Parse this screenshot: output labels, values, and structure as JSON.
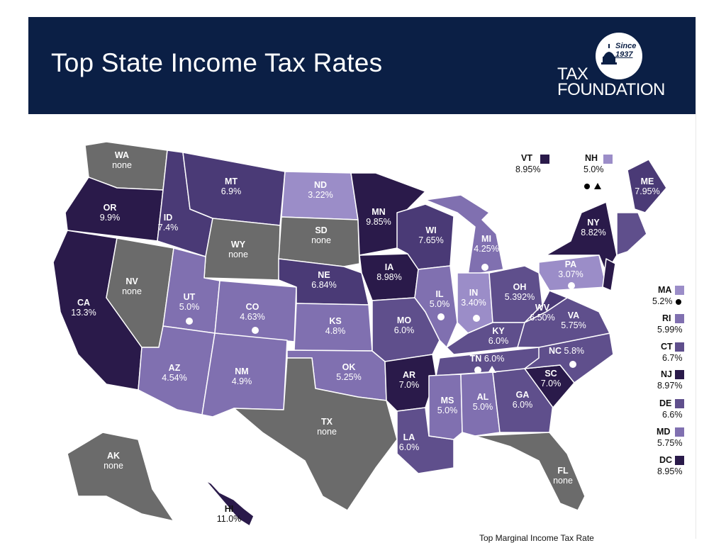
{
  "header": {
    "title": "Top State Income Tax Rates",
    "logo_since": "Since",
    "logo_year": "1937",
    "logo_line1": "TAX",
    "logo_line2": "FOUNDATION"
  },
  "colors": {
    "header_bg": "#0b1f45",
    "none": "#6b6b6b",
    "tier_darkest": "#2a1a4a",
    "tier_dark": "#4a3a76",
    "tier_mid": "#5f4f8c",
    "tier_light": "#8070b0",
    "tier_lightest": "#9b8dc8"
  },
  "chart_data": {
    "type": "choropleth",
    "states": [
      {
        "abbr": "WA",
        "rate": "none"
      },
      {
        "abbr": "OR",
        "rate": "9.9%"
      },
      {
        "abbr": "CA",
        "rate": "13.3%"
      },
      {
        "abbr": "NV",
        "rate": "none"
      },
      {
        "abbr": "ID",
        "rate": "7.4%"
      },
      {
        "abbr": "MT",
        "rate": "6.9%"
      },
      {
        "abbr": "WY",
        "rate": "none"
      },
      {
        "abbr": "UT",
        "rate": "5.0%"
      },
      {
        "abbr": "AZ",
        "rate": "4.54%"
      },
      {
        "abbr": "CO",
        "rate": "4.63%"
      },
      {
        "abbr": "NM",
        "rate": "4.9%"
      },
      {
        "abbr": "ND",
        "rate": "3.22%"
      },
      {
        "abbr": "SD",
        "rate": "none"
      },
      {
        "abbr": "NE",
        "rate": "6.84%"
      },
      {
        "abbr": "KS",
        "rate": "4.8%"
      },
      {
        "abbr": "OK",
        "rate": "5.25%"
      },
      {
        "abbr": "TX",
        "rate": "none"
      },
      {
        "abbr": "MN",
        "rate": "9.85%"
      },
      {
        "abbr": "IA",
        "rate": "8.98%"
      },
      {
        "abbr": "MO",
        "rate": "6.0%"
      },
      {
        "abbr": "AR",
        "rate": "7.0%"
      },
      {
        "abbr": "LA",
        "rate": "6.0%"
      },
      {
        "abbr": "WI",
        "rate": "7.65%"
      },
      {
        "abbr": "IL",
        "rate": "5.0%"
      },
      {
        "abbr": "MI",
        "rate": "4.25%"
      },
      {
        "abbr": "IN",
        "rate": "3.40%"
      },
      {
        "abbr": "OH",
        "rate": "5.392%"
      },
      {
        "abbr": "KY",
        "rate": "6.0%"
      },
      {
        "abbr": "TN",
        "rate": "6.0%"
      },
      {
        "abbr": "MS",
        "rate": "5.0%"
      },
      {
        "abbr": "AL",
        "rate": "5.0%"
      },
      {
        "abbr": "GA",
        "rate": "6.0%"
      },
      {
        "abbr": "FL",
        "rate": "none"
      },
      {
        "abbr": "SC",
        "rate": "7.0%"
      },
      {
        "abbr": "NC",
        "rate": "5.8%"
      },
      {
        "abbr": "VA",
        "rate": "5.75%"
      },
      {
        "abbr": "WV",
        "rate": "6.50%"
      },
      {
        "abbr": "PA",
        "rate": "3.07%"
      },
      {
        "abbr": "NY",
        "rate": "8.82%"
      },
      {
        "abbr": "ME",
        "rate": "7.95%"
      },
      {
        "abbr": "AK",
        "rate": "none"
      },
      {
        "abbr": "HI",
        "rate": "11.0%"
      }
    ],
    "callouts": [
      {
        "abbr": "VT",
        "rate": "8.95%"
      },
      {
        "abbr": "NH",
        "rate": "5.0%"
      },
      {
        "abbr": "MA",
        "rate": "5.2%"
      },
      {
        "abbr": "RI",
        "rate": "5.99%"
      },
      {
        "abbr": "CT",
        "rate": "6.7%"
      },
      {
        "abbr": "NJ",
        "rate": "8.97%"
      },
      {
        "abbr": "DE",
        "rate": "6.6%"
      },
      {
        "abbr": "MD",
        "rate": "5.75%"
      },
      {
        "abbr": "DC",
        "rate": "8.95%"
      }
    ]
  },
  "footnote": "Top Marginal Income Tax Rate"
}
